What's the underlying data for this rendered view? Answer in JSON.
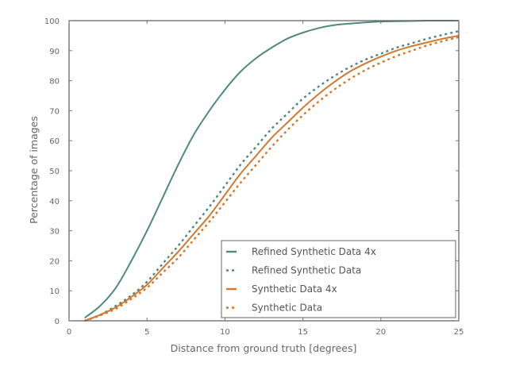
{
  "chart_data": {
    "type": "line",
    "title": "",
    "xlabel": "Distance from ground truth [degrees]",
    "ylabel": "Percentage of images",
    "xlim": [
      0,
      25
    ],
    "ylim": [
      0,
      100
    ],
    "xticks": [
      0,
      5,
      10,
      15,
      20,
      25
    ],
    "yticks": [
      0,
      10,
      20,
      30,
      40,
      50,
      60,
      70,
      80,
      90,
      100
    ],
    "grid": false,
    "legend_position": "lower right",
    "series": [
      {
        "name": "Refined Synthetic Data 4x",
        "color": "#4e8a7e",
        "style": "solid",
        "x": [
          1,
          2,
          3,
          4,
          5,
          6,
          7,
          8,
          9,
          10,
          11,
          12,
          13,
          14,
          15,
          16,
          17,
          18,
          19,
          20,
          21,
          22,
          23,
          24,
          25
        ],
        "values": [
          1,
          5,
          11,
          20,
          30,
          41,
          52,
          62,
          70,
          77,
          83,
          87.5,
          91,
          94,
          96,
          97.5,
          98.5,
          99,
          99.4,
          99.7,
          99.8,
          99.9,
          100,
          100,
          100
        ]
      },
      {
        "name": "Refined Synthetic Data",
        "color": "#4e8a7e",
        "style": "dashed",
        "x": [
          1,
          2,
          3,
          4,
          5,
          6,
          7,
          8,
          9,
          10,
          11,
          12,
          13,
          14,
          15,
          16,
          17,
          18,
          19,
          20,
          21,
          22,
          23,
          24,
          25
        ],
        "values": [
          0,
          2,
          5,
          8.5,
          13,
          19,
          25,
          31.5,
          38,
          45,
          52,
          58,
          64,
          69,
          74,
          78,
          81.5,
          84.5,
          87,
          89,
          91,
          92.5,
          94,
          95.3,
          96.5
        ]
      },
      {
        "name": "Synthetic Data 4x",
        "color": "#d2782f",
        "style": "solid",
        "x": [
          1,
          2,
          3,
          4,
          5,
          6,
          7,
          8,
          9,
          10,
          11,
          12,
          13,
          14,
          15,
          16,
          17,
          18,
          19,
          20,
          21,
          22,
          23,
          24,
          25
        ],
        "values": [
          0,
          2,
          4.5,
          8,
          12,
          17.5,
          23,
          29,
          35,
          42,
          49,
          55,
          61,
          66,
          71,
          75.5,
          79.5,
          83,
          85.7,
          88,
          90,
          91.5,
          92.8,
          94,
          95
        ]
      },
      {
        "name": "Synthetic Data",
        "color": "#d2782f",
        "style": "dashed",
        "x": [
          1,
          2,
          3,
          4,
          5,
          6,
          7,
          8,
          9,
          10,
          11,
          12,
          13,
          14,
          15,
          16,
          17,
          18,
          19,
          20,
          21,
          22,
          23,
          24,
          25
        ],
        "values": [
          0,
          1.8,
          4,
          7.3,
          11,
          16,
          21,
          27,
          33,
          39.5,
          46,
          52,
          58,
          63.5,
          68.5,
          73,
          77,
          80.5,
          83.5,
          86,
          88.2,
          90,
          91.8,
          93.2,
          94.5
        ]
      }
    ]
  }
}
